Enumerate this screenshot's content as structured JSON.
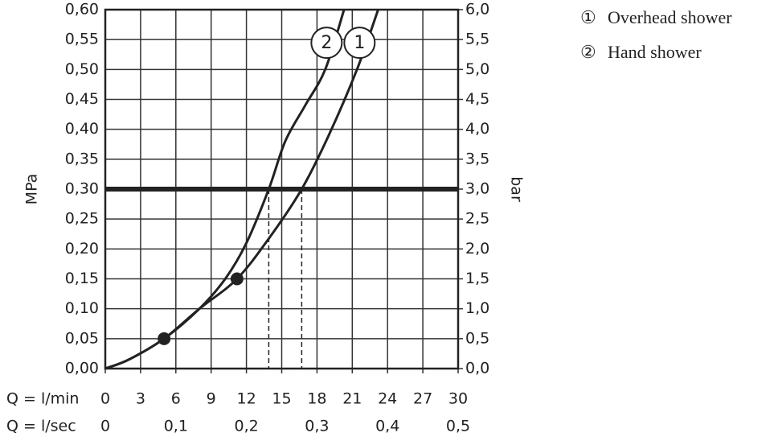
{
  "chart_data": {
    "type": "line",
    "y_label": "MPa",
    "y2_label": "bar",
    "x_label": "Q = l/min",
    "x2_label": "Q = l/sec",
    "xlim": [
      0,
      30
    ],
    "xticks": [
      0,
      3,
      6,
      9,
      12,
      15,
      18,
      21,
      24,
      27,
      30
    ],
    "x2lim": [
      0,
      0.5
    ],
    "x2ticks": [
      0,
      {
        "value": 0.1,
        "label": "0,1"
      },
      {
        "value": 0.2,
        "label": "0,2"
      },
      {
        "value": 0.3,
        "label": "0,3"
      },
      {
        "value": 0.4,
        "label": "0,4"
      },
      {
        "value": 0.5,
        "label": "0,5"
      }
    ],
    "ylim": [
      0,
      0.6
    ],
    "yticks": [
      {
        "value": 0,
        "label": "0,00"
      },
      {
        "value": 0.05,
        "label": "0,05"
      },
      {
        "value": 0.1,
        "label": "0,10"
      },
      {
        "value": 0.15,
        "label": "0,15"
      },
      {
        "value": 0.2,
        "label": "0,20"
      },
      {
        "value": 0.25,
        "label": "0,25"
      },
      {
        "value": 0.3,
        "label": "0,30"
      },
      {
        "value": 0.35,
        "label": "0,35"
      },
      {
        "value": 0.4,
        "label": "0,40"
      },
      {
        "value": 0.45,
        "label": "0,45"
      },
      {
        "value": 0.5,
        "label": "0,50"
      },
      {
        "value": 0.55,
        "label": "0,55"
      },
      {
        "value": 0.6,
        "label": "0,60"
      }
    ],
    "y2lim": [
      0,
      6
    ],
    "y2ticks": [
      {
        "value": 0,
        "label": "0,0"
      },
      {
        "value": 0.5,
        "label": "0,5"
      },
      {
        "value": 1,
        "label": "1,0"
      },
      {
        "value": 1.5,
        "label": "1,5"
      },
      {
        "value": 2,
        "label": "2,0"
      },
      {
        "value": 2.5,
        "label": "2,5"
      },
      {
        "value": 3,
        "label": "3,0"
      },
      {
        "value": 3.5,
        "label": "3,5"
      },
      {
        "value": 4,
        "label": "4,0"
      },
      {
        "value": 4.5,
        "label": "4,5"
      },
      {
        "value": 5,
        "label": "5,0"
      },
      {
        "value": 5.5,
        "label": "5,5"
      },
      {
        "value": 6,
        "label": "6,0"
      }
    ],
    "grid": true,
    "reference_line": 0.3,
    "drop_lines_x": [
      13.9,
      16.7
    ],
    "points": [
      {
        "x": 5,
        "y": 0.05
      },
      {
        "x": 11.2,
        "y": 0.15
      }
    ],
    "series": [
      {
        "name": "Overhead shower",
        "symbol": "①",
        "label": "1",
        "color": "#222222",
        "x": [
          0,
          2,
          5,
          8,
          11.2,
          14,
          16.7,
          19,
          21.4,
          23.2
        ],
        "values": [
          0,
          0.015,
          0.05,
          0.1,
          0.15,
          0.22,
          0.3,
          0.39,
          0.5,
          0.6
        ]
      },
      {
        "name": "Hand shower",
        "symbol": "②",
        "label": "2",
        "color": "#222222",
        "x": [
          0,
          2,
          5,
          8,
          10.2,
          12,
          13.9,
          15.3,
          17,
          18.7,
          20.3
        ],
        "values": [
          0,
          0.015,
          0.05,
          0.1,
          0.15,
          0.21,
          0.3,
          0.38,
          0.44,
          0.5,
          0.6
        ]
      }
    ]
  }
}
